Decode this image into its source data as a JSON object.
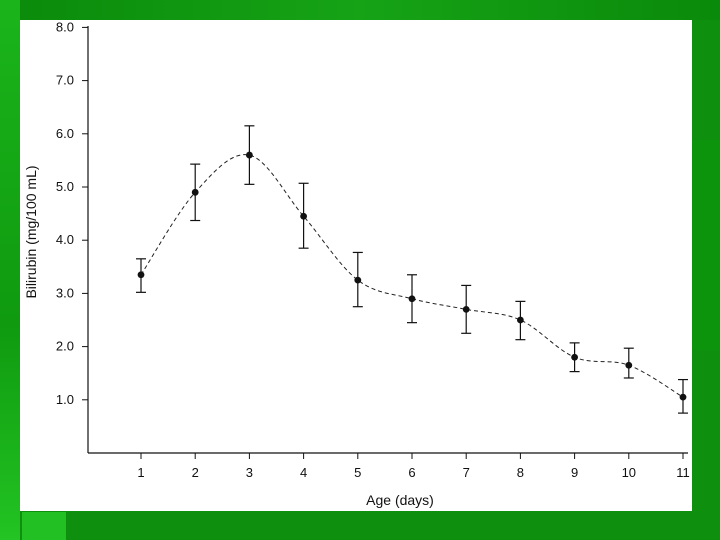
{
  "chart_data": {
    "type": "line",
    "xlabel": "Age (days)",
    "ylabel": "Bilirubin (mg/100 mL)",
    "xlim": [
      0,
      11
    ],
    "ylim": [
      0,
      8
    ],
    "x_ticks": [
      "1",
      "2",
      "3",
      "4",
      "5",
      "6",
      "7",
      "8",
      "9",
      "10",
      "11"
    ],
    "y_ticks": [
      "1.0",
      "2.0",
      "3.0",
      "4.0",
      "5.0",
      "6.0",
      "7.0",
      "8.0"
    ],
    "grid": false,
    "legend": "none",
    "line_style": "dashed",
    "series": [
      {
        "x": [
          1,
          2,
          3,
          4,
          5,
          6,
          7,
          8,
          9,
          10,
          11
        ],
        "y": [
          3.35,
          4.9,
          5.6,
          4.45,
          3.25,
          2.9,
          2.7,
          2.5,
          1.8,
          1.65,
          1.05
        ],
        "error_low": [
          3.02,
          4.37,
          5.05,
          3.85,
          2.75,
          2.45,
          2.25,
          2.13,
          1.53,
          1.41,
          0.75
        ],
        "error_high": [
          3.65,
          5.43,
          6.15,
          5.07,
          3.77,
          3.35,
          3.15,
          2.85,
          2.07,
          1.97,
          1.38
        ]
      }
    ]
  },
  "colors": {
    "background_green": "#0e8f0e",
    "slide_white": "#ffffff",
    "ink": "#111111"
  }
}
